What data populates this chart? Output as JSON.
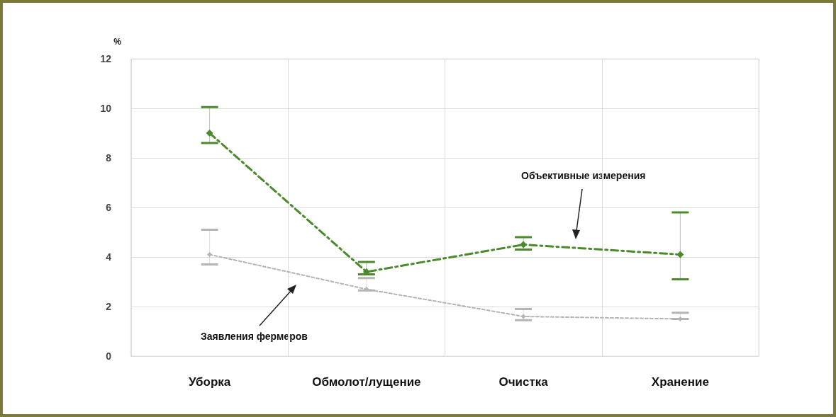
{
  "chart_data": {
    "type": "line",
    "ylabel": "%",
    "categories": [
      "Уборка",
      "Обмолот/лущение",
      "Очистка",
      "Хранение"
    ],
    "series": [
      {
        "color": "#4a8a2a",
        "line_style": "dashed",
        "values": [
          9.0,
          3.4,
          4.5,
          4.1
        ],
        "errors": [
          [
            8.6,
            10.05
          ],
          [
            3.3,
            3.8
          ],
          [
            4.3,
            4.8
          ],
          [
            3.1,
            5.8
          ]
        ]
      },
      {
        "color": "#b4b4b4",
        "line_style": "dotted",
        "values": [
          4.1,
          2.7,
          1.6,
          1.5
        ],
        "errors": [
          [
            3.7,
            5.1
          ],
          [
            2.65,
            3.15
          ],
          [
            1.45,
            1.9
          ],
          [
            1.5,
            1.75
          ]
        ]
      }
    ],
    "ylim": [
      0,
      12
    ],
    "yticks": [
      0,
      2,
      4,
      6,
      8,
      10,
      12
    ],
    "grid": true,
    "marker": "diamond",
    "annotations": [
      "Объективные измерения",
      "Заявления фермеров"
    ]
  }
}
